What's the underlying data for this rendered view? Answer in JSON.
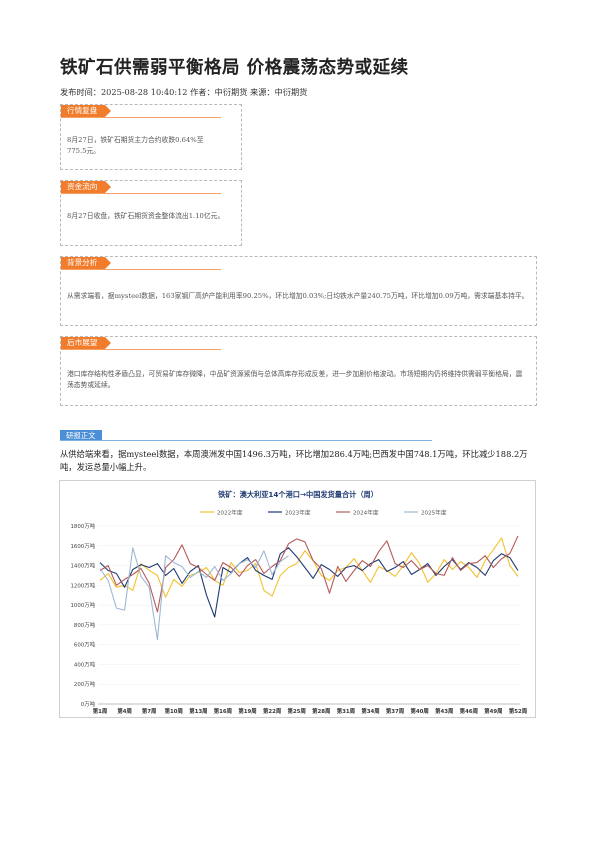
{
  "article": {
    "title": "铁矿石供需弱平衡格局 价格震荡态势或延续",
    "meta": "发布时间：2025-08-28 10:40:12 作者：中衍期货 来源：中衍期货"
  },
  "sections": [
    {
      "tag": "行情复盘",
      "text": "8月27日，铁矿石期货主力合约收跌0.64%至775.5元。"
    },
    {
      "tag": "资金流向",
      "text": "8月27日收盘，铁矿石期货资金整体流出1.10亿元。"
    },
    {
      "tag": "背景分析",
      "text": "从需求端看，据mysteel数据，163家钢厂高炉产能利用率90.25%，环比增加0.03%;日均铁水产量240.75万吨，环比增加0.09万吨，需求端基本持平。"
    },
    {
      "tag": "后市展望",
      "text": "港口库存结构性矛盾凸显，可贸易矿库存微降，中品矿资源紧俏与总体高库存形成反差，进一步加剧价格波动。市场短期内仍将维持供需弱平衡格局，震荡态势或延续。"
    }
  ],
  "report": {
    "tag": "研报正文",
    "text": "从供给端来看，据mysteel数据，本周澳洲发中国1496.3万吨，环比增加286.4万吨;巴西发中国748.1万吨，环比减少188.2万吨，发运总量小幅上升。"
  },
  "chart_data": {
    "type": "line",
    "title": "铁矿：澳大利亚14个港口→中国发货量合计（周）",
    "ylim": [
      0,
      1800
    ],
    "yticks": [
      "0万吨",
      "200万吨",
      "400万吨",
      "600万吨",
      "800万吨",
      "1000万吨",
      "1200万吨",
      "1400万吨",
      "1600万吨",
      "1800万吨"
    ],
    "xtick_labels": [
      "第1周",
      "第4周",
      "第7周",
      "第10周",
      "第13周",
      "第16周",
      "第19周",
      "第22周",
      "第25周",
      "第28周",
      "第31周",
      "第34周",
      "第37周",
      "第40周",
      "第43周",
      "第46周",
      "第49周",
      "第52周"
    ],
    "series": [
      {
        "name": "2022年度",
        "color": "#f2c12e",
        "weeks": 52,
        "values": [
          1250,
          1320,
          1180,
          1200,
          1150,
          1420,
          1350,
          1300,
          1080,
          1260,
          1190,
          1300,
          1330,
          1380,
          1250,
          1200,
          1430,
          1330,
          1350,
          1420,
          1150,
          1090,
          1300,
          1380,
          1420,
          1550,
          1450,
          1300,
          1250,
          1350,
          1380,
          1470,
          1350,
          1230,
          1390,
          1350,
          1290,
          1400,
          1530,
          1420,
          1230,
          1320,
          1460,
          1360,
          1440,
          1380,
          1280,
          1450,
          1560,
          1680,
          1400,
          1290
        ]
      },
      {
        "name": "2023年度",
        "color": "#1f3a73",
        "weeks": 52,
        "values": [
          1430,
          1350,
          1320,
          1180,
          1360,
          1410,
          1380,
          1420,
          1300,
          1370,
          1220,
          1340,
          1400,
          1100,
          880,
          1380,
          1330,
          1420,
          1480,
          1350,
          1300,
          1260,
          1520,
          1580,
          1490,
          1380,
          1270,
          1410,
          1360,
          1290,
          1380,
          1400,
          1350,
          1420,
          1460,
          1340,
          1380,
          1440,
          1310,
          1360,
          1420,
          1300,
          1390,
          1460,
          1360,
          1430,
          1380,
          1300,
          1450,
          1520,
          1480,
          1350
        ]
      },
      {
        "name": "2024年度",
        "color": "#b55a5a",
        "weeks": 52,
        "values": [
          1350,
          1400,
          1200,
          1260,
          1310,
          1370,
          1220,
          930,
          1380,
          1460,
          1610,
          1420,
          1380,
          1310,
          1250,
          1430,
          1380,
          1290,
          1400,
          1460,
          1320,
          1390,
          1450,
          1620,
          1670,
          1640,
          1450,
          1370,
          1120,
          1390,
          1240,
          1350,
          1450,
          1390,
          1540,
          1650,
          1420,
          1380,
          1450,
          1360,
          1400,
          1320,
          1300,
          1480,
          1350,
          1420,
          1430,
          1500,
          1380,
          1470,
          1520,
          1700
        ]
      },
      {
        "name": "2025年度",
        "color": "#9fb7d4",
        "weeks": 24,
        "values": [
          1370,
          1250,
          970,
          950,
          1580,
          1290,
          1180,
          650,
          1500,
          1430,
          1390,
          1280,
          1340,
          1280,
          1390,
          1250,
          1320,
          1420,
          1460,
          1380,
          1550,
          1310,
          1440,
          1500
        ]
      }
    ]
  }
}
